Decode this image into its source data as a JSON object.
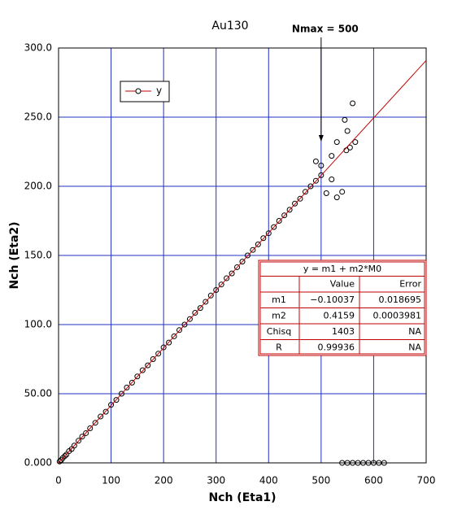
{
  "chart_data": {
    "type": "scatter",
    "title": "Au130",
    "annotation": {
      "text": "Nmax = 500",
      "x": 500
    },
    "x_label": "Nch (Eta1)",
    "y_label": "Nch (Eta2)",
    "xlim": [
      0,
      700
    ],
    "xticks": [
      0,
      100,
      200,
      300,
      400,
      500,
      600,
      700
    ],
    "ylim": [
      0,
      300
    ],
    "yticks": [
      {
        "value": 0,
        "label": "0.000"
      },
      {
        "value": 50,
        "label": "50.00"
      },
      {
        "value": 100,
        "label": "100.0"
      },
      {
        "value": 150,
        "label": "150.0"
      },
      {
        "value": 200,
        "label": "200.0"
      },
      {
        "value": 250,
        "label": "250.0"
      },
      {
        "value": 300,
        "label": "300.0"
      }
    ],
    "grid": true,
    "series": [
      {
        "name": "y",
        "color": "#000000",
        "line_color": "#c00000",
        "x": [
          2,
          5,
          8,
          12,
          15,
          20,
          25,
          30,
          38,
          45,
          52,
          60,
          70,
          80,
          90,
          100,
          110,
          120,
          130,
          140,
          150,
          160,
          170,
          180,
          190,
          200,
          210,
          220,
          230,
          240,
          250,
          260,
          270,
          280,
          290,
          300,
          310,
          320,
          330,
          340,
          350,
          360,
          370,
          380,
          390,
          400,
          410,
          420,
          430,
          440,
          450,
          460,
          470,
          480,
          490,
          500,
          520,
          530,
          545,
          555,
          560,
          565,
          490,
          500,
          510,
          520,
          530,
          540,
          550,
          548,
          540,
          550,
          560,
          570,
          580,
          590,
          600,
          610,
          620
        ],
        "values": [
          1,
          2,
          3.5,
          5,
          6,
          8.5,
          10,
          12.5,
          16,
          19,
          21.5,
          25,
          29,
          33.5,
          37,
          42,
          45.5,
          50,
          54.5,
          58,
          62.5,
          67,
          70.5,
          75,
          79,
          83.5,
          87,
          91.5,
          96,
          100,
          104,
          108.5,
          112,
          116.5,
          121,
          125,
          129,
          133.5,
          137,
          141.5,
          145.5,
          150,
          154,
          158,
          162.5,
          166,
          170.5,
          175,
          179,
          183,
          187.5,
          191,
          196,
          200,
          204,
          208,
          205,
          232,
          248,
          228,
          260,
          232,
          218,
          215,
          195,
          222,
          192,
          196,
          240,
          226,
          0,
          0,
          0,
          0,
          0,
          0,
          0,
          0,
          0
        ]
      },
      {
        "type": "line",
        "color": "#c00000",
        "x": [
          0,
          700
        ],
        "values": [
          0,
          291
        ]
      }
    ],
    "fit_table": {
      "title": "y = m1 + m2*M0",
      "columns": [
        "Value",
        "Error"
      ],
      "rows": [
        [
          "m1",
          "−0.10037",
          "0.018695"
        ],
        [
          "m2",
          "0.4159",
          "0.0003981"
        ],
        [
          "Chisq",
          "1403",
          "NA"
        ],
        [
          "R",
          "0.99936",
          "NA"
        ]
      ]
    }
  }
}
